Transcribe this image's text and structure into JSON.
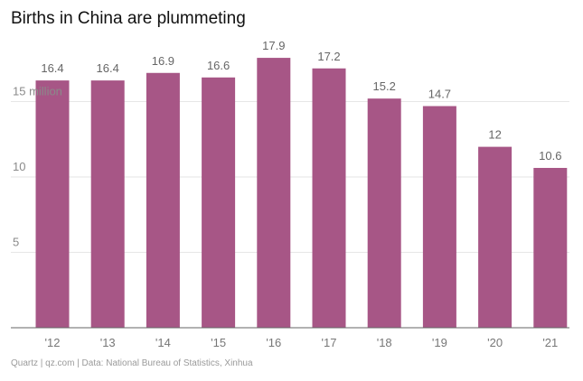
{
  "title": "Births in China are plummeting",
  "footer": "Quartz | qz.com | Data: National Bureau of Statistics, Xinhua",
  "colors": {
    "bar": "#a75686"
  },
  "chart_data": {
    "type": "bar",
    "title": "Births in China are plummeting",
    "categories": [
      "'12",
      "'13",
      "'14",
      "'15",
      "'16",
      "'17",
      "'18",
      "'19",
      "'20",
      "'21"
    ],
    "values": [
      16.4,
      16.4,
      16.9,
      16.6,
      17.9,
      17.2,
      15.2,
      14.7,
      12,
      10.6
    ],
    "value_labels": [
      "16.4",
      "16.4",
      "16.9",
      "16.6",
      "17.9",
      "17.2",
      "15.2",
      "14.7",
      "12",
      "10.6"
    ],
    "y_ticks": [
      {
        "value": 5,
        "label": "5"
      },
      {
        "value": 10,
        "label": "10"
      },
      {
        "value": 15,
        "label": "15 million"
      }
    ],
    "ylim": [
      0,
      20
    ],
    "grid": true,
    "legend": "none"
  }
}
